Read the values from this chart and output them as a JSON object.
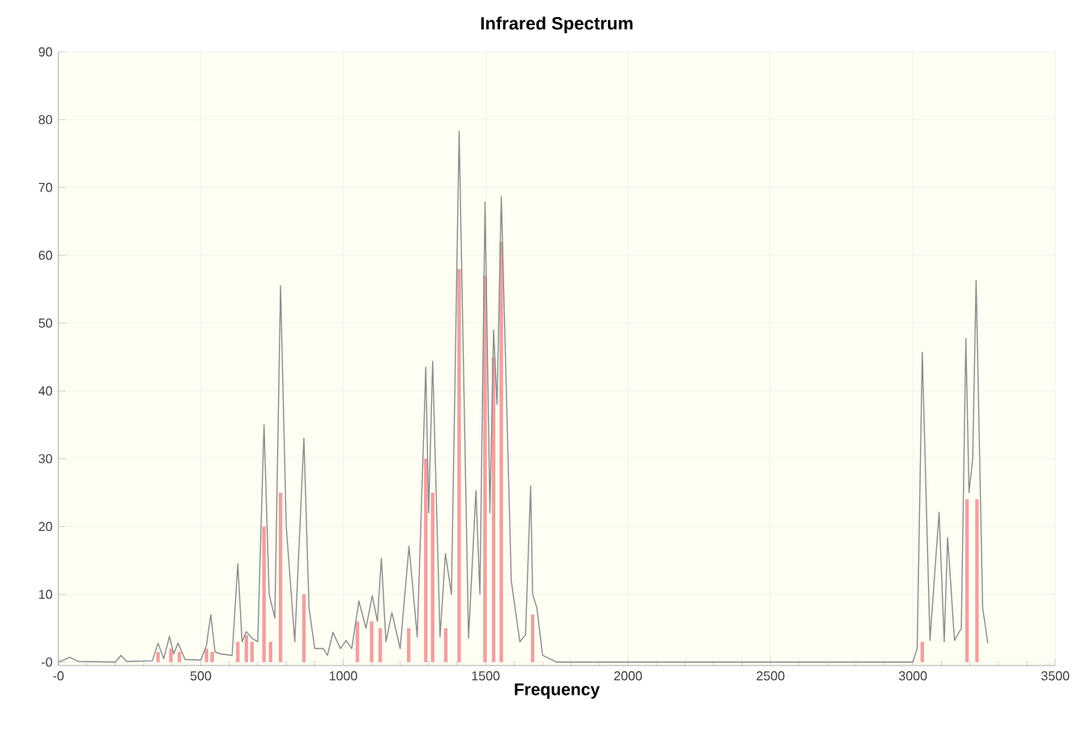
{
  "chart_data": {
    "type": "line",
    "title": "Infrared Spectrum",
    "xlabel": "Frequency",
    "xlim": [
      0,
      3500
    ],
    "ylim": [
      -0.5,
      90
    ],
    "xticks": [
      {
        "value": 0,
        "label": "-0"
      },
      500,
      1000,
      1500,
      2000,
      2500,
      3000,
      3500
    ],
    "yticks": [
      {
        "value": 0,
        "label": "-0"
      },
      10,
      20,
      30,
      40,
      50,
      60,
      70,
      80,
      90
    ],
    "grid": true,
    "series": [
      {
        "type": "bar",
        "color": "#f0a0a0",
        "x": [
          350,
          395,
          425,
          520,
          540,
          630,
          660,
          680,
          722,
          745,
          780,
          862,
          1050,
          1100,
          1130,
          1230,
          1290,
          1314,
          1360,
          1407,
          1498,
          1528,
          1555,
          1665,
          3033,
          3190,
          3225
        ],
        "values": [
          1.5,
          2,
          1.5,
          2,
          1.5,
          3,
          4,
          3,
          20,
          3,
          25,
          10,
          6,
          6,
          5,
          5,
          30,
          25,
          5,
          58,
          57,
          45,
          62,
          7,
          3,
          24,
          24
        ]
      },
      {
        "color": "#8c8c8c",
        "x": [
          0,
          40,
          70,
          200,
          220,
          240,
          330,
          350,
          370,
          390,
          405,
          420,
          445,
          500,
          520,
          535,
          550,
          570,
          610,
          630,
          645,
          660,
          680,
          700,
          722,
          740,
          760,
          780,
          800,
          830,
          862,
          880,
          900,
          930,
          945,
          964,
          990,
          1010,
          1030,
          1055,
          1080,
          1102,
          1120,
          1134,
          1150,
          1171,
          1200,
          1231,
          1260,
          1290,
          1300,
          1314,
          1340,
          1359,
          1380,
          1407,
          1440,
          1466,
          1480,
          1498,
          1515,
          1528,
          1540,
          1555,
          1590,
          1620,
          1640,
          1658,
          1665,
          1680,
          1700,
          1750,
          1800,
          2500,
          3000,
          3015,
          3033,
          3060,
          3092,
          3110,
          3122,
          3146,
          3170,
          3186,
          3197,
          3210,
          3222,
          3245,
          3263
        ],
        "values": [
          0,
          0.7,
          0.1,
          0,
          1.0,
          0.1,
          0.2,
          2.8,
          0.5,
          3.8,
          1.2,
          2.8,
          0.4,
          0.3,
          2.5,
          7.0,
          1.5,
          1.2,
          1.0,
          14.5,
          3,
          4.5,
          3.5,
          3,
          35,
          10,
          6.5,
          55.5,
          20,
          3,
          33,
          8,
          2,
          2,
          1,
          4.4,
          2,
          3.2,
          2,
          9.0,
          5,
          9.8,
          6,
          15.3,
          3,
          7.3,
          2,
          17.1,
          3.7,
          43.5,
          22,
          44.4,
          3.7,
          16,
          10,
          78.3,
          3.5,
          25.3,
          10,
          67.9,
          22,
          49,
          38,
          68.7,
          12,
          3,
          4,
          26,
          10,
          8,
          1,
          0,
          0,
          0,
          0,
          2,
          45.7,
          3.2,
          22.1,
          3.0,
          18.4,
          3.2,
          5,
          47.7,
          25,
          30,
          56.3,
          8,
          2.8
        ]
      }
    ]
  }
}
